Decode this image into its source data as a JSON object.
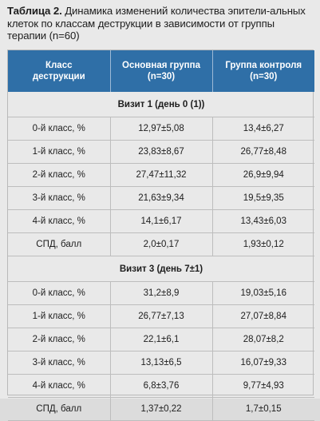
{
  "caption": {
    "label": "Таблица 2.",
    "text": " Динамика изменений количества эпители-альных клеток по классам деструкции в зависимости от группы терапии (n=60)"
  },
  "table": {
    "headers": [
      [
        "Класс",
        "деструкции"
      ],
      [
        "Основная группа",
        "(n=30)"
      ],
      [
        "Группа контроля",
        "(n=30)"
      ]
    ],
    "sections": [
      {
        "title": "Визит 1 (день 0 (1))",
        "rows": [
          [
            "0-й класс, %",
            "12,97±5,08",
            "13,4±6,27"
          ],
          [
            "1-й класс, %",
            "23,83±8,67",
            "26,77±8,48"
          ],
          [
            "2-й класс, %",
            "27,47±11,32",
            "26,9±9,94"
          ],
          [
            "3-й класс, %",
            "21,63±9,34",
            "19,5±9,35"
          ],
          [
            "4-й класс, %",
            "14,1±6,17",
            "13,43±6,03"
          ],
          [
            "СПД, балл",
            "2,0±0,17",
            "1,93±0,12"
          ]
        ]
      },
      {
        "title": "Визит 3 (день 7±1)",
        "rows": [
          [
            "0-й класс, %",
            "31,2±8,9",
            "19,03±5,16"
          ],
          [
            "1-й класс, %",
            "26,77±7,13",
            "27,07±8,84"
          ],
          [
            "2-й класс, %",
            "22,1±6,1",
            "28,07±8,2"
          ],
          [
            "3-й класс, %",
            "13,13±6,5",
            "16,07±9,33"
          ],
          [
            "4-й класс, %",
            "6,8±3,76",
            "9,77±4,93"
          ],
          [
            "СПД, балл",
            "1,37±0,22",
            "1,7±0,15"
          ]
        ]
      }
    ]
  }
}
